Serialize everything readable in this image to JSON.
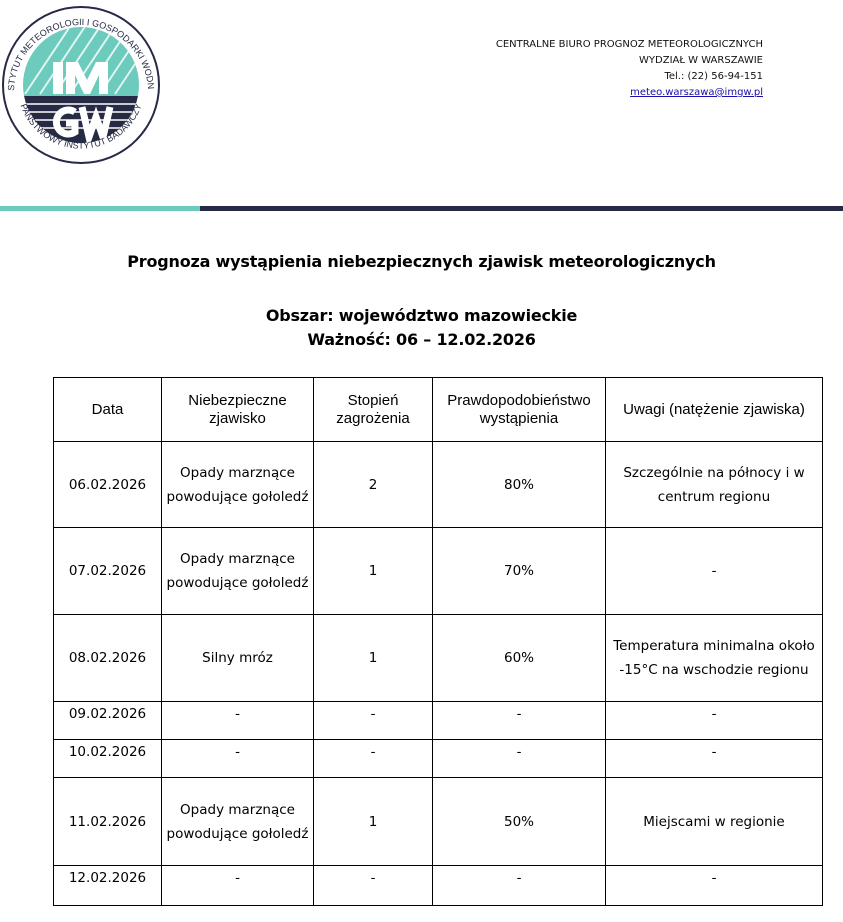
{
  "logo": {
    "ring_top": "INSTYTUT METEOROLOGII I GOSPODARKI WODNEJ",
    "ring_bottom": "PAŃSTWOWY INSTYTUT BADAWCZY",
    "line1": "IM",
    "line2": "GW",
    "colors": {
      "teal": "#6ccbbd",
      "navy": "#262a45"
    }
  },
  "header": {
    "org": "CENTRALNE BIURO PROGNOZ METEOROLOGICZNYCH",
    "dept": "WYDZIAŁ W WARSZAWIE",
    "phone": "Tel.: (22) 56-94-151",
    "email": "meteo.warszawa@imgw.pl"
  },
  "title": "Prognoza wystąpienia niebezpiecznych zjawisk meteorologicznych",
  "area": "Obszar: województwo mazowieckie",
  "validity": "Ważność: 06 – 12.02.2026",
  "table": {
    "headers": [
      "Data",
      "Niebezpieczne zjawisko",
      "Stopień zagrożenia",
      "Prawdopodobieństwo wystąpienia",
      "Uwagi (natężenie zjawiska)"
    ],
    "rows": [
      [
        "06.02.2026",
        "Opady marznące powodujące gołoledź",
        "2",
        "80%",
        "Szczególnie na północy i w centrum regionu"
      ],
      [
        "07.02.2026",
        "Opady marznące powodujące gołoledź",
        "1",
        "70%",
        "-"
      ],
      [
        "08.02.2026",
        "Silny mróz",
        "1",
        "60%",
        "Temperatura minimalna około -15°C na wschodzie regionu"
      ],
      [
        "09.02.2026",
        "-",
        "-",
        "-",
        "-"
      ],
      [
        "10.02.2026",
        "-",
        "-",
        "-",
        "-"
      ],
      [
        "11.02.2026",
        "Opady marznące powodujące gołoledź",
        "1",
        "50%",
        "Miejscami w regionie"
      ],
      [
        "12.02.2026",
        "-",
        "-",
        "-",
        "-"
      ]
    ]
  }
}
